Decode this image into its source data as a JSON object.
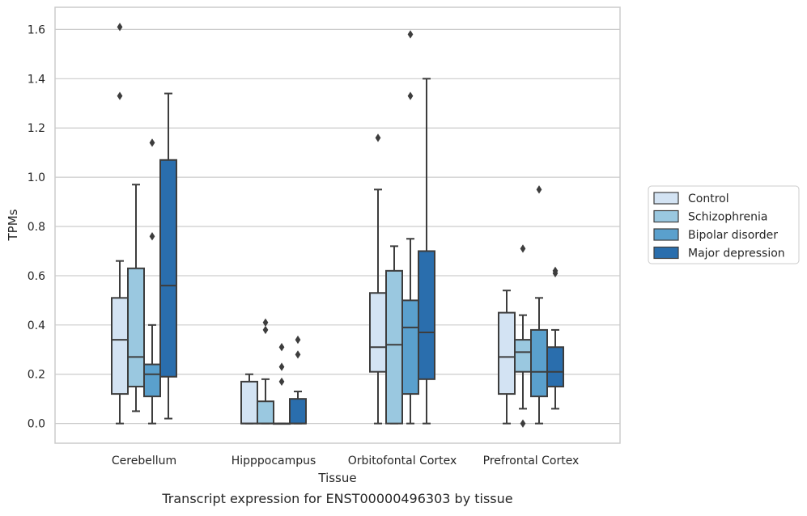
{
  "caption": "Transcript expression for ENST00000496303 by tissue",
  "chart_data": {
    "type": "box",
    "xlabel": "Tissue",
    "ylabel": "TPMs",
    "ylim": [
      -0.08,
      1.69
    ],
    "yticks": [
      "0.0",
      "0.2",
      "0.4",
      "0.6",
      "0.8",
      "1.0",
      "1.2",
      "1.4",
      "1.6"
    ],
    "ytick_values": [
      0.0,
      0.2,
      0.4,
      0.6,
      0.8,
      1.0,
      1.2,
      1.4,
      1.6
    ],
    "grid": "horizontal",
    "legend_position": "right",
    "categories": [
      "Cerebellum",
      "Hipppocampus",
      "Orbitofontal Cortex",
      "Prefrontal Cortex"
    ],
    "series": [
      {
        "name": "Control",
        "color": "#d3e3f3",
        "boxes": [
          {
            "min": 0.0,
            "q1": 0.12,
            "median": 0.34,
            "q3": 0.51,
            "max": 0.66,
            "outliers": [
              1.33,
              1.61
            ]
          },
          {
            "min": 0.0,
            "q1": 0.0,
            "median": 0.0,
            "q3": 0.17,
            "max": 0.2,
            "outliers": []
          },
          {
            "min": 0.0,
            "q1": 0.21,
            "median": 0.31,
            "q3": 0.53,
            "max": 0.95,
            "outliers": [
              1.16
            ]
          },
          {
            "min": 0.0,
            "q1": 0.12,
            "median": 0.27,
            "q3": 0.45,
            "max": 0.54,
            "outliers": []
          }
        ]
      },
      {
        "name": "Schizophrenia",
        "color": "#9ac8e0",
        "boxes": [
          {
            "min": 0.05,
            "q1": 0.15,
            "median": 0.27,
            "q3": 0.63,
            "max": 0.97,
            "outliers": []
          },
          {
            "min": 0.0,
            "q1": 0.0,
            "median": 0.0,
            "q3": 0.09,
            "max": 0.18,
            "outliers": [
              0.38,
              0.41
            ]
          },
          {
            "min": 0.0,
            "q1": 0.0,
            "median": 0.32,
            "q3": 0.62,
            "max": 0.72,
            "outliers": []
          },
          {
            "min": 0.06,
            "q1": 0.21,
            "median": 0.29,
            "q3": 0.34,
            "max": 0.44,
            "outliers": [
              0.0,
              0.71
            ]
          }
        ]
      },
      {
        "name": "Bipolar disorder",
        "color": "#5aa0cd",
        "boxes": [
          {
            "min": 0.0,
            "q1": 0.11,
            "median": 0.2,
            "q3": 0.24,
            "max": 0.4,
            "outliers": [
              0.76,
              1.14
            ]
          },
          {
            "min": 0.0,
            "q1": 0.0,
            "median": 0.0,
            "q3": 0.0,
            "max": 0.0,
            "outliers": [
              0.17,
              0.23,
              0.31
            ]
          },
          {
            "min": 0.0,
            "q1": 0.12,
            "median": 0.39,
            "q3": 0.5,
            "max": 0.75,
            "outliers": [
              1.33,
              1.58
            ]
          },
          {
            "min": 0.0,
            "q1": 0.11,
            "median": 0.21,
            "q3": 0.38,
            "max": 0.51,
            "outliers": [
              0.95
            ]
          }
        ]
      },
      {
        "name": "Major depression",
        "color": "#2a6ead",
        "boxes": [
          {
            "min": 0.02,
            "q1": 0.19,
            "median": 0.56,
            "q3": 1.07,
            "max": 1.34,
            "outliers": []
          },
          {
            "min": 0.0,
            "q1": 0.0,
            "median": 0.0,
            "q3": 0.1,
            "max": 0.13,
            "outliers": [
              0.28,
              0.34
            ]
          },
          {
            "min": 0.0,
            "q1": 0.18,
            "median": 0.37,
            "q3": 0.7,
            "max": 1.4,
            "outliers": []
          },
          {
            "min": 0.06,
            "q1": 0.15,
            "median": 0.21,
            "q3": 0.31,
            "max": 0.38,
            "outliers": [
              0.61,
              0.62
            ]
          }
        ]
      }
    ]
  }
}
